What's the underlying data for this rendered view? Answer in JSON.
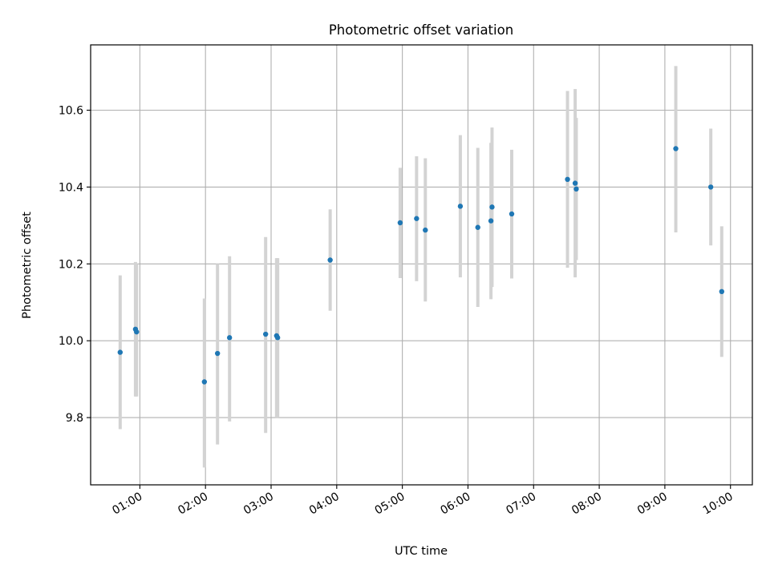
{
  "chart_data": {
    "type": "scatter",
    "title": "Photometric offset variation",
    "xlabel": "UTC time",
    "ylabel": "Photometric offset",
    "grid": true,
    "xlim": [
      "00:15",
      "10:20"
    ],
    "ylim": [
      9.625,
      10.77
    ],
    "x_ticks": [
      "01:00",
      "02:00",
      "03:00",
      "04:00",
      "05:00",
      "06:00",
      "07:00",
      "08:00",
      "09:00",
      "10:00"
    ],
    "y_ticks": [
      "9.8",
      "10.0",
      "10.2",
      "10.4",
      "10.6"
    ],
    "colors": {
      "points": "#1f77b4",
      "errorbars": "#d3d3d3"
    },
    "points": [
      {
        "x": "00:42",
        "y": 9.97,
        "low": 9.77,
        "high": 10.17
      },
      {
        "x": "00:56",
        "y": 10.03,
        "low": 9.855,
        "high": 10.205
      },
      {
        "x": "00:57",
        "y": 10.023,
        "low": 9.855,
        "high": 10.2
      },
      {
        "x": "01:59",
        "y": 9.893,
        "low": 9.67,
        "high": 10.11
      },
      {
        "x": "02:11",
        "y": 9.967,
        "low": 9.73,
        "high": 10.2
      },
      {
        "x": "02:22",
        "y": 10.008,
        "low": 9.79,
        "high": 10.22
      },
      {
        "x": "02:55",
        "y": 10.017,
        "low": 9.76,
        "high": 10.27
      },
      {
        "x": "03:05",
        "y": 10.013,
        "low": 9.8,
        "high": 10.215
      },
      {
        "x": "03:06",
        "y": 10.008,
        "low": 9.8,
        "high": 10.215
      },
      {
        "x": "03:54",
        "y": 10.21,
        "low": 10.078,
        "high": 10.342
      },
      {
        "x": "04:58",
        "y": 10.307,
        "low": 10.163,
        "high": 10.45
      },
      {
        "x": "05:13",
        "y": 10.318,
        "low": 10.155,
        "high": 10.48
      },
      {
        "x": "05:21",
        "y": 10.288,
        "low": 10.102,
        "high": 10.475
      },
      {
        "x": "05:53",
        "y": 10.35,
        "low": 10.165,
        "high": 10.535
      },
      {
        "x": "06:09",
        "y": 10.295,
        "low": 10.088,
        "high": 10.502
      },
      {
        "x": "06:21",
        "y": 10.312,
        "low": 10.108,
        "high": 10.515
      },
      {
        "x": "06:22",
        "y": 10.348,
        "low": 10.14,
        "high": 10.555
      },
      {
        "x": "06:40",
        "y": 10.33,
        "low": 10.162,
        "high": 10.497
      },
      {
        "x": "07:31",
        "y": 10.42,
        "low": 10.19,
        "high": 10.65
      },
      {
        "x": "07:38",
        "y": 10.41,
        "low": 10.165,
        "high": 10.655
      },
      {
        "x": "07:39",
        "y": 10.395,
        "low": 10.21,
        "high": 10.58
      },
      {
        "x": "09:10",
        "y": 10.5,
        "low": 10.282,
        "high": 10.715
      },
      {
        "x": "09:42",
        "y": 10.4,
        "low": 10.248,
        "high": 10.552
      },
      {
        "x": "09:52",
        "y": 10.128,
        "low": 9.958,
        "high": 10.298
      }
    ]
  }
}
